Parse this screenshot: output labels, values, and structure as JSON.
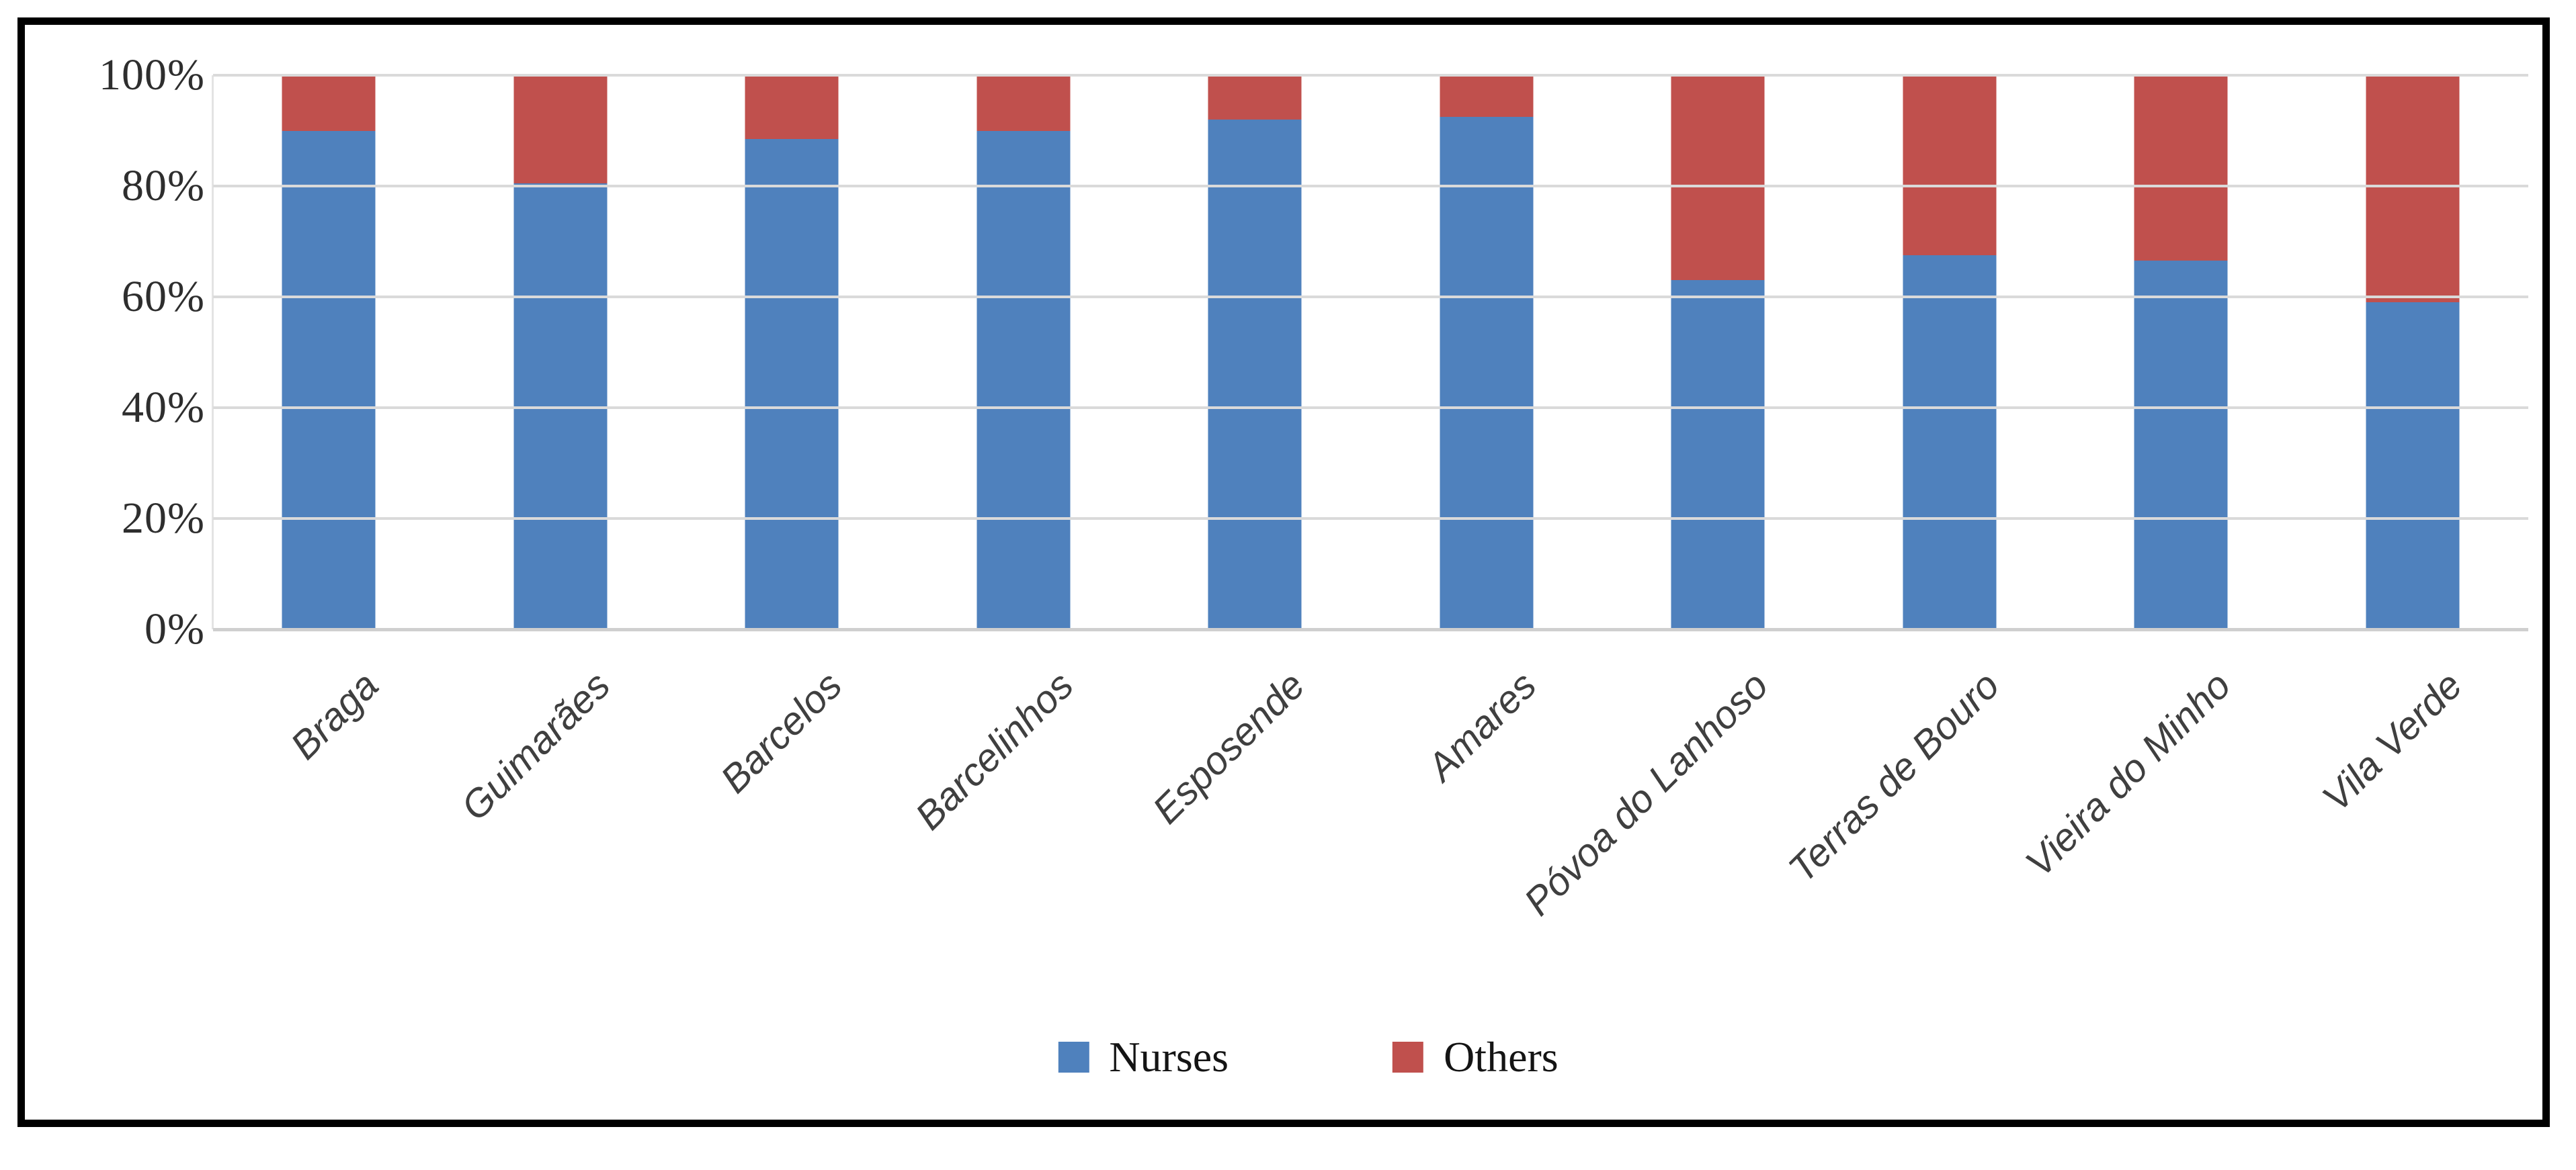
{
  "chart_data": {
    "type": "bar",
    "stacked": true,
    "stacking": "percent",
    "title": "",
    "xlabel": "",
    "ylabel": "",
    "categories": [
      "Braga",
      "Guimarães",
      "Barcelos",
      "Barcelinhos",
      "Esposende",
      "Amares",
      "Póvoa do Lanhoso",
      "Terras de Bouro",
      "Vieira do Minho",
      "Vila Verde"
    ],
    "series": [
      {
        "name": "Nurses",
        "color": "#4F81BD",
        "values": [
          90,
          80.5,
          88.5,
          90,
          92,
          92.5,
          63,
          67.5,
          66.5,
          59
        ]
      },
      {
        "name": "Others",
        "color": "#C0504D",
        "values": [
          10,
          19.5,
          11.5,
          10,
          8,
          7.5,
          37,
          32.5,
          33.5,
          41
        ]
      }
    ],
    "ylim": [
      0,
      100
    ],
    "y_ticks": [
      "0%",
      "20%",
      "40%",
      "60%",
      "80%",
      "100%"
    ],
    "grid": true,
    "legend_position": "bottom"
  },
  "colors": {
    "nurses": "#4F81BD",
    "others": "#C0504D",
    "gridline": "#DADADA",
    "axis_line": "#CFCFCF",
    "frame_border": "#000000",
    "tick_text": "#2E2E2E",
    "category_text": "#3F3F3F"
  }
}
